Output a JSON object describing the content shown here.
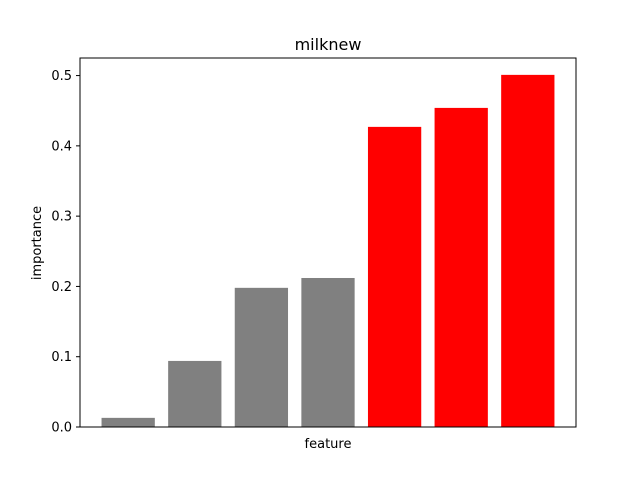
{
  "chart_data": {
    "type": "bar",
    "title": "milknew",
    "xlabel": "feature",
    "ylabel": "importance",
    "categories": [
      "",
      "",
      "",
      "",
      "",
      "",
      ""
    ],
    "values": [
      0.013,
      0.094,
      0.198,
      0.212,
      0.427,
      0.454,
      0.501
    ],
    "bar_colors": [
      "#808080",
      "#808080",
      "#808080",
      "#808080",
      "#ff0000",
      "#ff0000",
      "#ff0000"
    ],
    "ylim": [
      0,
      0.525
    ],
    "yticks": [
      0.0,
      0.1,
      0.2,
      0.3,
      0.4,
      0.5
    ],
    "ytick_labels": [
      "0.0",
      "0.1",
      "0.2",
      "0.3",
      "0.4",
      "0.5"
    ],
    "grid": false,
    "legend": "none"
  }
}
